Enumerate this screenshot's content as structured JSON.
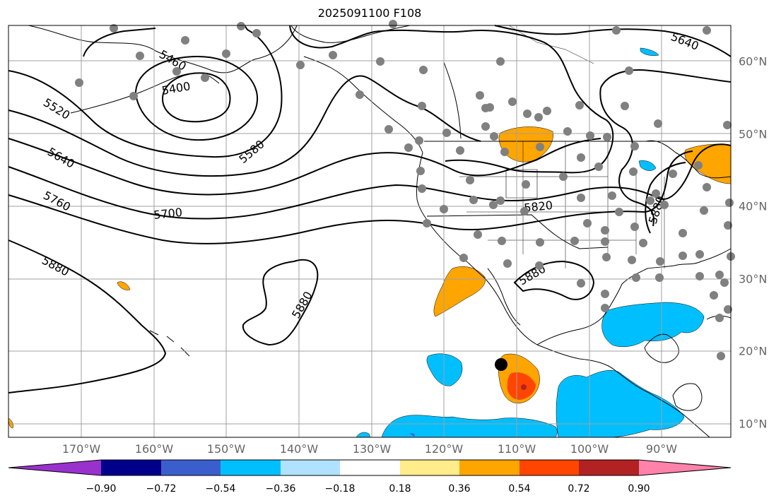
{
  "title": "2025091100 F108",
  "lon_labels": [
    "170°W",
    "160°W",
    "150°W",
    "140°W",
    "130°W",
    "120°W",
    "110°W",
    "100°W",
    "90°W"
  ],
  "lat_labels": [
    "60°N",
    "50°N",
    "40°N",
    "30°N",
    "20°N",
    "10°N"
  ],
  "contour_labels": [
    "5460",
    "5400",
    "5520",
    "5580",
    "5640",
    "5760",
    "5700",
    "5820",
    "5880",
    "5880",
    "5880",
    "5880",
    "5640"
  ],
  "colorbar": {
    "ticks": [
      "−0.90",
      "−0.72",
      "−0.54",
      "−0.36",
      "−0.18",
      "0.18",
      "0.36",
      "0.54",
      "0.72",
      "0.90"
    ],
    "colors": [
      "#9932cc",
      "#00008b",
      "#3a5fcd",
      "#00bfff",
      "#b0e2ff",
      "#ffffff",
      "#ffec8b",
      "#ffa500",
      "#ff4500",
      "#b22222",
      "#ff82ab"
    ]
  },
  "colors": {
    "contour": "#000000",
    "station": "#808080",
    "grid": "#a0a0a0"
  }
}
